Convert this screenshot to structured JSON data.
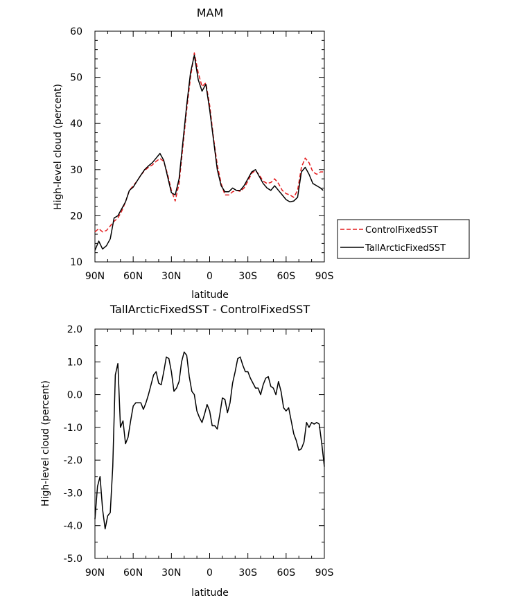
{
  "chart_data": [
    {
      "type": "line",
      "title": "MAM",
      "xlabel": "latitude",
      "ylabel": "High-level cloud (percent)",
      "xlim": [
        90,
        -90
      ],
      "ylim": [
        10,
        60
      ],
      "xticks": [
        90,
        60,
        30,
        0,
        -30,
        -60,
        -90
      ],
      "xtick_labels": [
        "90N",
        "60N",
        "30N",
        "0",
        "30S",
        "60S",
        "90S"
      ],
      "yticks": [
        10,
        20,
        30,
        40,
        50,
        60
      ],
      "ytick_labels": [
        "10",
        "20",
        "30",
        "40",
        "50",
        "60"
      ],
      "grid": false,
      "legend_position": "right",
      "series": [
        {
          "name": "ControlFixedSST",
          "color": "#e41a1c",
          "dash": "dashed",
          "x": [
            90,
            87,
            84,
            81,
            78,
            75,
            72,
            69,
            66,
            63,
            60,
            57,
            54,
            51,
            48,
            45,
            42,
            39,
            36,
            33,
            30,
            27,
            24,
            21,
            18,
            15,
            12,
            9,
            6,
            3,
            0,
            -3,
            -6,
            -9,
            -12,
            -15,
            -18,
            -21,
            -24,
            -27,
            -30,
            -33,
            -36,
            -39,
            -42,
            -45,
            -48,
            -51,
            -54,
            -57,
            -60,
            -63,
            -66,
            -69,
            -72,
            -75,
            -78,
            -81,
            -84,
            -87,
            -89
          ],
          "values": [
            16.5,
            17.2,
            16.5,
            16.8,
            17.8,
            18.8,
            19.5,
            21.0,
            23.0,
            25.5,
            26.5,
            27.5,
            28.8,
            29.8,
            30.5,
            31.0,
            31.8,
            32.4,
            31.8,
            29.0,
            25.5,
            23.2,
            27.0,
            35.0,
            43.0,
            50.0,
            55.3,
            51.0,
            48.0,
            48.8,
            44.0,
            37.0,
            31.0,
            27.0,
            24.5,
            24.5,
            25.2,
            25.5,
            25.3,
            26.0,
            27.5,
            29.2,
            29.8,
            28.8,
            27.5,
            27.0,
            27.2,
            28.0,
            27.0,
            25.5,
            24.8,
            24.5,
            24.0,
            25.5,
            30.5,
            32.5,
            31.5,
            29.5,
            29.0,
            29.5,
            29.5
          ]
        },
        {
          "name": "TallArcticFixedSST",
          "color": "#000000",
          "dash": "solid",
          "x": [
            90,
            87,
            84,
            81,
            78,
            75,
            72,
            69,
            66,
            63,
            60,
            57,
            54,
            51,
            48,
            45,
            42,
            39,
            36,
            33,
            30,
            27,
            24,
            21,
            18,
            15,
            12,
            9,
            6,
            3,
            0,
            -3,
            -6,
            -9,
            -12,
            -15,
            -18,
            -21,
            -24,
            -27,
            -30,
            -33,
            -36,
            -39,
            -42,
            -45,
            -48,
            -51,
            -54,
            -57,
            -60,
            -63,
            -66,
            -69,
            -72,
            -75,
            -78,
            -81,
            -84,
            -87,
            -89
          ],
          "values": [
            12.5,
            14.5,
            12.8,
            13.5,
            15.0,
            19.5,
            20.0,
            21.5,
            23.0,
            25.5,
            26.2,
            27.5,
            28.8,
            30.0,
            30.8,
            31.5,
            32.5,
            33.5,
            32.0,
            28.5,
            25.0,
            24.5,
            28.0,
            36.0,
            44.0,
            51.0,
            54.8,
            49.5,
            47.0,
            48.5,
            43.0,
            36.5,
            30.0,
            26.5,
            25.2,
            25.2,
            26.0,
            25.5,
            25.5,
            26.5,
            28.0,
            29.5,
            30.0,
            28.5,
            27.0,
            26.0,
            25.5,
            26.5,
            25.5,
            24.5,
            23.5,
            23.0,
            23.2,
            24.0,
            29.5,
            30.5,
            29.0,
            27.0,
            26.5,
            26.0,
            25.5
          ]
        }
      ]
    },
    {
      "type": "line",
      "title": "TallArcticFixedSST - ControlFixedSST",
      "xlabel": "latitude",
      "ylabel": "High-level cloud (percent)",
      "xlim": [
        90,
        -90
      ],
      "ylim": [
        -5.0,
        2.0
      ],
      "xticks": [
        90,
        60,
        30,
        0,
        -30,
        -60,
        -90
      ],
      "xtick_labels": [
        "90N",
        "60N",
        "30N",
        "0",
        "30S",
        "60S",
        "90S"
      ],
      "yticks": [
        -5.0,
        -4.0,
        -3.0,
        -2.0,
        -1.0,
        0.0,
        1.0,
        2.0
      ],
      "ytick_labels": [
        "-5.0",
        "-4.0",
        "-3.0",
        "-2.0",
        "-1.0",
        "0.0",
        "1.0",
        "2.0"
      ],
      "grid": false,
      "series": [
        {
          "color": "#000000",
          "dash": "solid",
          "x": [
            90,
            88,
            86,
            84,
            82,
            80,
            78,
            76,
            74,
            72,
            70,
            68,
            66,
            64,
            62,
            60,
            58,
            56,
            54,
            52,
            50,
            48,
            46,
            44,
            42,
            40,
            38,
            36,
            34,
            32,
            30,
            28,
            26,
            24,
            22,
            20,
            18,
            16,
            14,
            12,
            10,
            8,
            6,
            4,
            2,
            0,
            -2,
            -4,
            -6,
            -8,
            -10,
            -12,
            -14,
            -16,
            -18,
            -20,
            -22,
            -24,
            -26,
            -28,
            -30,
            -32,
            -34,
            -36,
            -38,
            -40,
            -42,
            -44,
            -46,
            -48,
            -50,
            -52,
            -54,
            -56,
            -58,
            -60,
            -62,
            -64,
            -66,
            -68,
            -70,
            -72,
            -74,
            -76,
            -78,
            -80,
            -82,
            -84,
            -86,
            -88,
            -90
          ],
          "values": [
            -3.8,
            -2.8,
            -2.5,
            -3.5,
            -4.1,
            -3.7,
            -3.6,
            -2.2,
            0.6,
            0.95,
            -1.0,
            -0.8,
            -1.5,
            -1.3,
            -0.8,
            -0.35,
            -0.25,
            -0.25,
            -0.25,
            -0.45,
            -0.25,
            0.0,
            0.3,
            0.6,
            0.7,
            0.35,
            0.3,
            0.7,
            1.15,
            1.1,
            0.7,
            0.1,
            0.2,
            0.4,
            1.0,
            1.3,
            1.2,
            0.55,
            0.1,
            0.0,
            -0.5,
            -0.7,
            -0.85,
            -0.6,
            -0.3,
            -0.5,
            -0.95,
            -0.95,
            -1.05,
            -0.6,
            -0.1,
            -0.15,
            -0.55,
            -0.25,
            0.35,
            0.7,
            1.1,
            1.15,
            0.9,
            0.7,
            0.7,
            0.5,
            0.35,
            0.2,
            0.2,
            0.0,
            0.3,
            0.5,
            0.55,
            0.25,
            0.2,
            0.0,
            0.4,
            0.1,
            -0.4,
            -0.5,
            -0.4,
            -0.8,
            -1.2,
            -1.4,
            -1.7,
            -1.65,
            -1.45,
            -0.85,
            -1.0,
            -0.85,
            -0.9,
            -0.85,
            -0.9,
            -1.5,
            -2.2
          ]
        }
      ]
    }
  ],
  "legend": {
    "items": [
      {
        "label": "ControlFixedSST",
        "color": "#e41a1c",
        "dash": "dashed"
      },
      {
        "label": "TallArcticFixedSST",
        "color": "#000000",
        "dash": "solid"
      }
    ]
  }
}
